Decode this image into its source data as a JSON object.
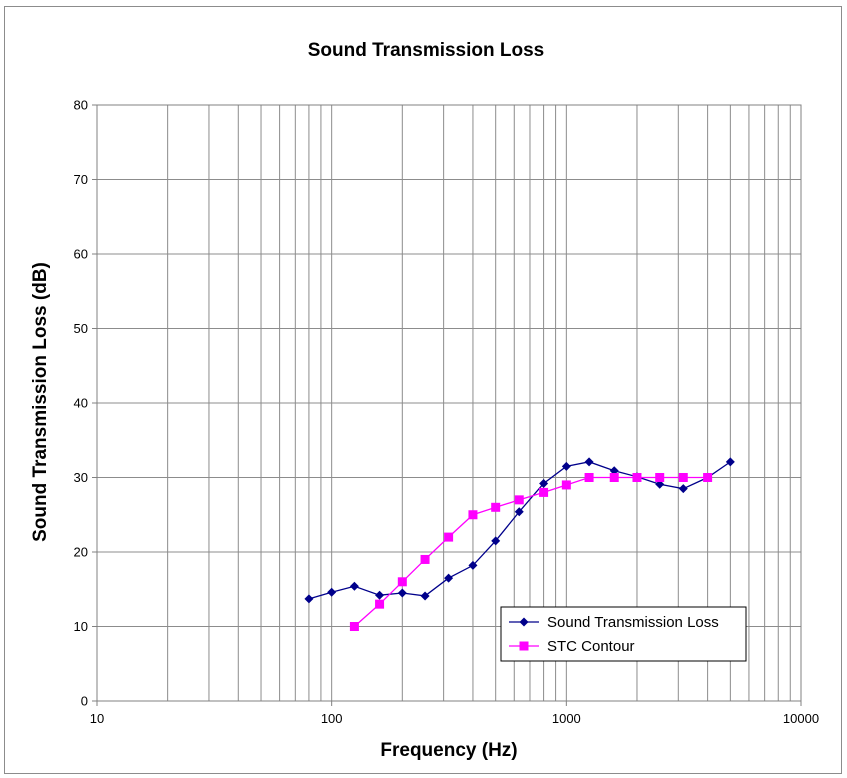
{
  "chart_data": {
    "type": "line",
    "title": "Sound Transmission Loss",
    "xlabel": "Frequency (Hz)",
    "ylabel": "Sound Transmission Loss (dB)",
    "x_scale": "log",
    "xlim": [
      10,
      10000
    ],
    "ylim": [
      0,
      80
    ],
    "x_ticks": [
      "10",
      "100",
      "1000",
      "10000"
    ],
    "y_ticks": [
      "0",
      "10",
      "20",
      "30",
      "40",
      "50",
      "60",
      "70",
      "80"
    ],
    "grid": true,
    "legend_position": "bottom-right",
    "series": [
      {
        "name": "Sound Transmission Loss",
        "color": "#00008B",
        "marker": "diamond",
        "x": [
          80,
          100,
          125,
          160,
          200,
          250,
          315,
          400,
          500,
          630,
          800,
          1000,
          1250,
          1600,
          2000,
          2500,
          3150,
          4000,
          5000
        ],
        "values": [
          13.7,
          14.6,
          15.4,
          14.2,
          14.5,
          14.1,
          16.5,
          18.2,
          21.5,
          25.4,
          29.2,
          31.5,
          32.1,
          30.9,
          30.1,
          29.1,
          28.5,
          30.0,
          32.1
        ]
      },
      {
        "name": "STC Contour",
        "color": "#FF00FF",
        "marker": "square",
        "x": [
          125,
          160,
          200,
          250,
          315,
          400,
          500,
          630,
          800,
          1000,
          1250,
          1600,
          2000,
          2500,
          3150,
          4000
        ],
        "values": [
          10,
          13,
          16,
          19,
          22,
          25,
          26,
          27,
          28,
          29,
          30,
          30,
          30,
          30,
          30,
          30
        ]
      }
    ]
  }
}
